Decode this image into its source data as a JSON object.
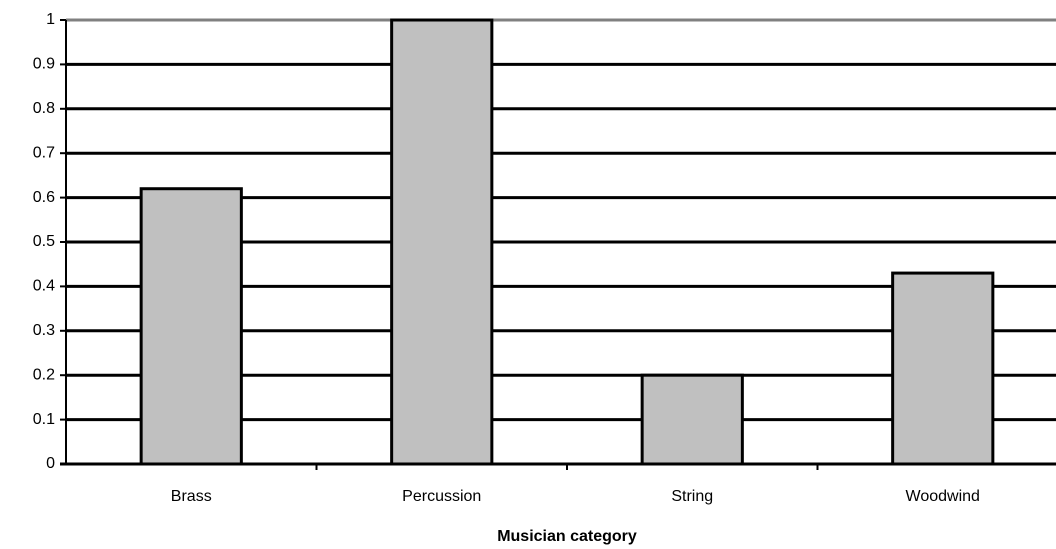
{
  "chart_data": {
    "type": "bar",
    "x_label": "Musician category",
    "categories": [
      "Brass",
      "Percussion",
      "String",
      "Woodwind"
    ],
    "values": [
      0.62,
      1.0,
      0.2,
      0.43
    ],
    "color": "#c0c0c0",
    "ylim": [
      0,
      1
    ],
    "yticks": [
      0,
      0.1,
      0.2,
      0.3,
      0.4,
      0.5,
      0.6,
      0.7,
      0.8,
      0.9,
      1
    ],
    "grid": true
  }
}
